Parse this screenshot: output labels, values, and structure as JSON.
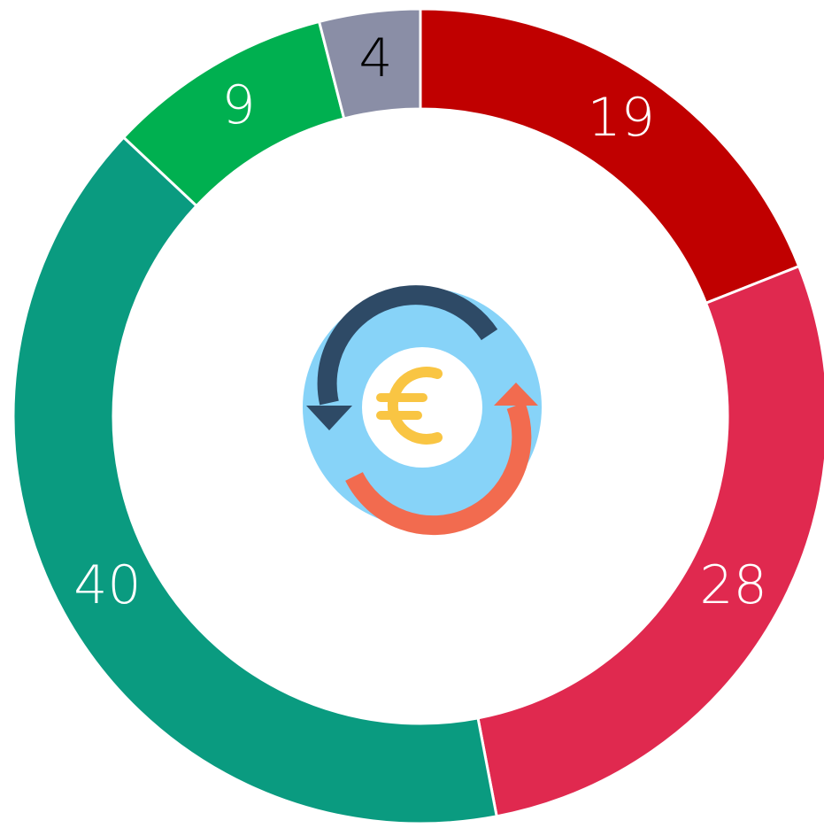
{
  "chart_data": {
    "type": "donut",
    "values": [
      19,
      28,
      40,
      9,
      4
    ],
    "colors": [
      "#c00000",
      "#e0294f",
      "#0a9b80",
      "#00b050",
      "#8a8ea6"
    ],
    "start_angle": 0,
    "direction": "clockwise"
  }
}
